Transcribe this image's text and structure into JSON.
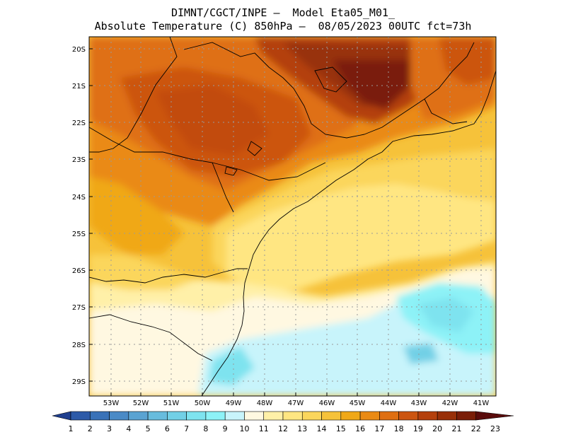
{
  "header": {
    "line1": "DIMNT/CGCT/INPE –  Model Eta05_M01_",
    "line2": "Absolute Temperature (C) 850hPa –  08/05/2023 00UTC fct=73h"
  },
  "map": {
    "lat_labels": [
      "20S",
      "21S",
      "22S",
      "23S",
      "24S",
      "25S",
      "26S",
      "27S",
      "28S",
      "29S"
    ],
    "lon_labels": [
      "53W",
      "52W",
      "51W",
      "50W",
      "49W",
      "48W",
      "47W",
      "46W",
      "45W",
      "44W",
      "43W",
      "42W",
      "41W"
    ],
    "lat_range": [
      -29.4,
      -19.8
    ],
    "lon_range": [
      -53.8,
      -40.4
    ]
  },
  "colorbar": {
    "labels": [
      "1",
      "2",
      "3",
      "4",
      "5",
      "6",
      "7",
      "8",
      "9",
      "10",
      "11",
      "12",
      "13",
      "14",
      "15",
      "16",
      "17",
      "18",
      "19",
      "20",
      "21",
      "22",
      "23"
    ],
    "colors": [
      "#1f3f8f",
      "#2d5aa8",
      "#3a72b8",
      "#4a8ac6",
      "#5aa3d2",
      "#68bcdd",
      "#72d0e6",
      "#7ee3ef",
      "#8df2f7",
      "#c8f4fb",
      "#fff8e1",
      "#fff0a8",
      "#ffe682",
      "#fbd65c",
      "#f6c23a",
      "#f0a818",
      "#ea8a14",
      "#df6f12",
      "#cc5510",
      "#b4400c",
      "#983008",
      "#7a1e08",
      "#5a0c0c"
    ]
  }
}
